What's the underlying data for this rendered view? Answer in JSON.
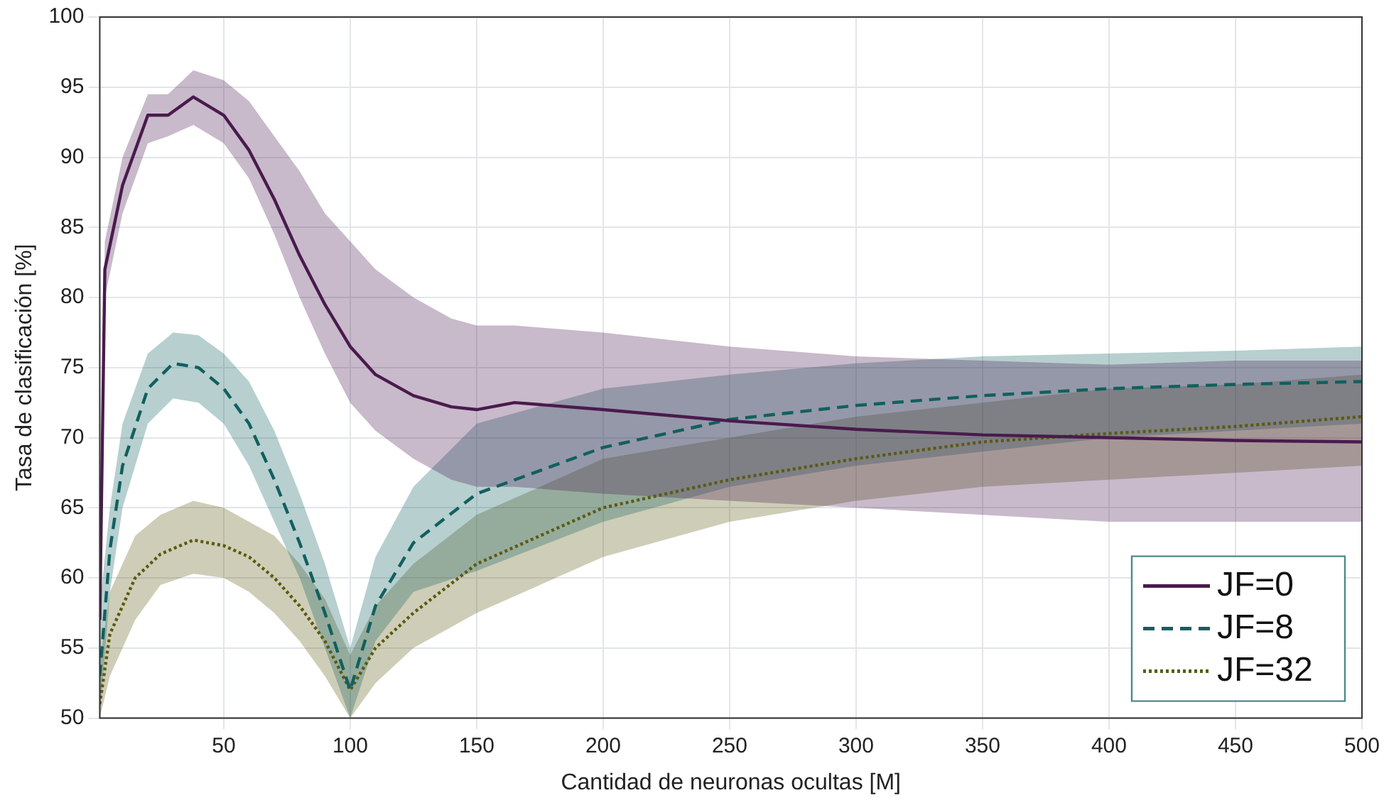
{
  "chart_data": {
    "type": "line",
    "xlabel": "Cantidad de neuronas ocultas [M]",
    "ylabel": "Tasa de clasificación [%]",
    "xlim": [
      1,
      500
    ],
    "xticks": [
      50,
      100,
      150,
      200,
      250,
      300,
      350,
      400,
      450,
      500
    ],
    "ylim": [
      50,
      100
    ],
    "yticks": [
      50,
      55,
      60,
      65,
      70,
      75,
      80,
      85,
      90,
      95,
      100
    ],
    "grid": true,
    "legend": "bottom right",
    "marker": "none",
    "series": [
      {
        "name": "JF=0",
        "color": "#4a1a4e",
        "line_style": "solid",
        "x": [
          1,
          3,
          10,
          20,
          28,
          38,
          50,
          60,
          70,
          80,
          90,
          100,
          110,
          125,
          140,
          150,
          165,
          200,
          250,
          300,
          350,
          400,
          450,
          500
        ],
        "values": [
          57,
          82,
          88,
          93,
          93,
          94.3,
          93,
          90.5,
          87,
          83,
          79.5,
          76.5,
          74.5,
          73,
          72.2,
          72,
          72.5,
          72,
          71.2,
          70.6,
          70.2,
          70,
          69.8,
          69.7
        ],
        "lower": [
          54,
          80,
          86,
          91,
          91.5,
          92.3,
          91,
          88.5,
          84.5,
          80,
          76,
          72.5,
          70.5,
          68.5,
          67,
          66.5,
          66.5,
          66,
          65.5,
          65,
          64.5,
          64,
          64,
          64
        ],
        "upper": [
          62,
          84,
          90,
          94.5,
          94.5,
          96.2,
          95.5,
          94,
          91.5,
          89,
          86,
          84,
          82,
          80,
          78.5,
          78,
          78,
          77.5,
          76.5,
          75.8,
          75.5,
          75.2,
          75.5,
          75.5
        ]
      },
      {
        "name": "JF=8",
        "color": "#11605f",
        "line_style": "dashed",
        "x": [
          1,
          5,
          10,
          20,
          30,
          40,
          50,
          60,
          70,
          80,
          90,
          100,
          110,
          125,
          150,
          200,
          250,
          300,
          350,
          400,
          450,
          500
        ],
        "values": [
          53,
          62,
          68,
          73.5,
          75.3,
          75,
          73.5,
          71,
          67,
          62.5,
          57.5,
          52,
          58,
          62.5,
          66,
          69.3,
          71.3,
          72.3,
          73,
          73.5,
          73.8,
          74
        ],
        "lower": [
          50,
          59,
          65,
          71,
          72.8,
          72.5,
          71,
          68,
          64,
          60,
          55,
          50,
          55.5,
          59,
          60.5,
          64,
          66.5,
          68,
          69,
          70,
          70.5,
          71
        ],
        "upper": [
          58,
          65,
          71,
          76,
          77.5,
          77.3,
          76,
          74,
          70.5,
          66,
          61,
          55,
          61.5,
          66.5,
          71,
          73.5,
          74.5,
          75.3,
          75.8,
          76,
          76.2,
          76.5
        ]
      },
      {
        "name": "JF=32",
        "color": "#5c5a12",
        "line_style": "dotted",
        "x": [
          1,
          5,
          15,
          25,
          38,
          50,
          60,
          70,
          80,
          90,
          100,
          110,
          125,
          150,
          200,
          250,
          300,
          350,
          400,
          450,
          500
        ],
        "values": [
          51,
          56,
          60,
          61.7,
          62.7,
          62.3,
          61.5,
          60,
          58,
          55.5,
          52,
          55,
          57.5,
          61,
          65,
          67,
          68.5,
          69.7,
          70.3,
          70.8,
          71.5
        ],
        "lower": [
          50,
          53,
          57,
          59.5,
          60.3,
          60,
          59,
          57.5,
          55.5,
          53,
          50,
          52.5,
          55,
          57.5,
          61.5,
          64,
          65.5,
          66.5,
          67,
          67.5,
          68
        ],
        "upper": [
          54,
          59,
          63,
          64.5,
          65.5,
          65,
          64,
          63,
          61,
          58.5,
          54.5,
          58,
          61,
          64.5,
          68.5,
          70,
          71.5,
          72.5,
          73.5,
          73.8,
          74.5
        ]
      }
    ]
  }
}
